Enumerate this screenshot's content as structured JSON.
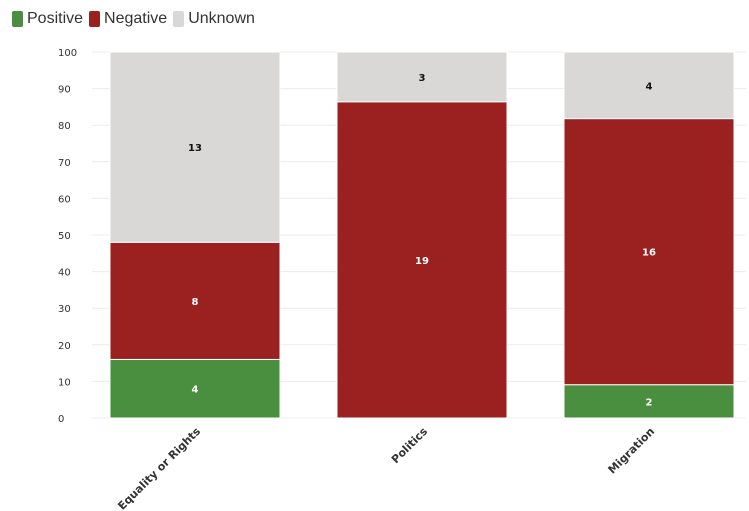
{
  "chart_data": {
    "type": "bar",
    "stacked": true,
    "normalized_percent": true,
    "categories": [
      "Equality or Rights",
      "Politics",
      "Migration"
    ],
    "series": [
      {
        "name": "Positive",
        "color": "#4a8f3f",
        "counts": [
          4,
          0,
          2
        ],
        "percent": [
          16,
          0,
          9.1
        ]
      },
      {
        "name": "Negative",
        "color": "#9b2121",
        "counts": [
          8,
          19,
          16
        ],
        "percent": [
          32,
          86.4,
          72.7
        ]
      },
      {
        "name": "Unknown",
        "color": "#d9d8d6",
        "counts": [
          13,
          3,
          4
        ],
        "percent": [
          52,
          13.6,
          18.2
        ]
      }
    ],
    "yticks": [
      "0",
      "10",
      "20",
      "30",
      "40",
      "50",
      "60",
      "70",
      "80",
      "90",
      "100"
    ],
    "ylim": [
      0,
      100
    ],
    "grid": true,
    "legend_position": "top-left",
    "title": "",
    "xlabel": "",
    "ylabel": ""
  }
}
